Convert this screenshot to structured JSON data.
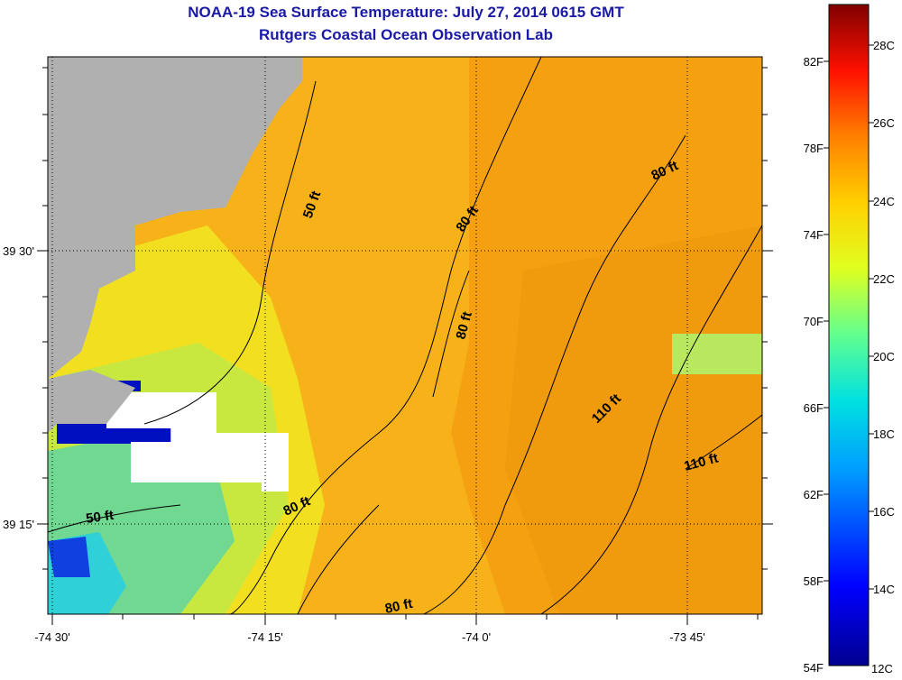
{
  "title": {
    "line1": "NOAA-19 Sea Surface Temperature:  July 27, 2014 0615 GMT",
    "line2": "Rutgers Coastal Ocean Observation Lab"
  },
  "map": {
    "x_ticks": [
      "-74 30'",
      "-74 15'",
      "-74 0'",
      "-73 45'"
    ],
    "y_ticks": [
      "39 30'",
      "39 15'"
    ],
    "contour_labels": [
      "50 ft",
      "80 ft",
      "80 ft",
      "80 ft",
      "110 ft",
      "110 ft",
      "50 ft",
      "80 ft",
      "80 ft"
    ],
    "colors": {
      "land": "#b0b0b0",
      "no_data": "#ffffff",
      "contour": "#000000"
    }
  },
  "colorbar": {
    "f_labels": [
      "82F",
      "78F",
      "74F",
      "70F",
      "66F",
      "62F",
      "58F",
      "54F"
    ],
    "c_labels": [
      "28C",
      "26C",
      "24C",
      "22C",
      "20C",
      "18C",
      "16C",
      "14C",
      "12C"
    ]
  }
}
